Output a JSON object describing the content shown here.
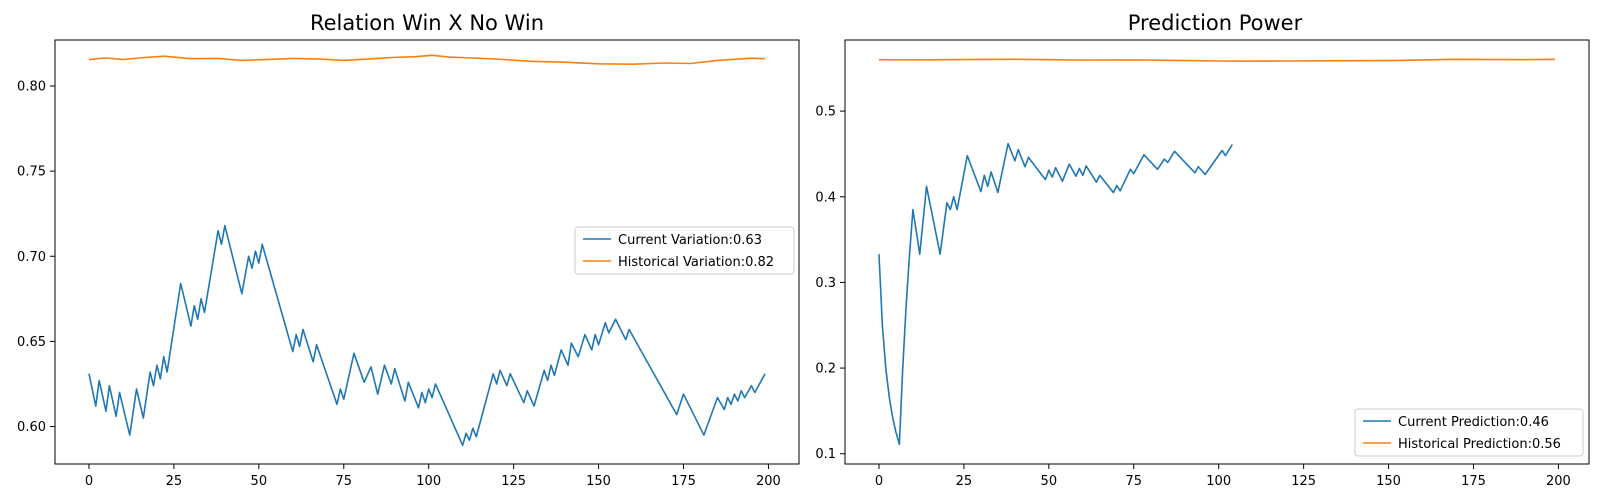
{
  "chart_data": [
    {
      "type": "line",
      "title": "Relation Win X No Win",
      "xlabel": "",
      "ylabel": "",
      "xlim": [
        -10,
        209
      ],
      "ylim": [
        0.578,
        0.827
      ],
      "x_ticks": [
        0,
        25,
        50,
        75,
        100,
        125,
        150,
        175,
        200
      ],
      "y_ticks": [
        0.6,
        0.65,
        0.7,
        0.75,
        0.8
      ],
      "y_tick_labels": [
        "0.60",
        "0.65",
        "0.70",
        "0.75",
        "0.80"
      ],
      "grid": false,
      "legend_position": "center-right",
      "series": [
        {
          "name": "Current Variation:0.63",
          "color": "#1f77b4",
          "points": [
            [
              0,
              0.631
            ],
            [
              2,
              0.612
            ],
            [
              3,
              0.627
            ],
            [
              5,
              0.609
            ],
            [
              6,
              0.624
            ],
            [
              8,
              0.606
            ],
            [
              9,
              0.62
            ],
            [
              12,
              0.595
            ],
            [
              14,
              0.622
            ],
            [
              16,
              0.605
            ],
            [
              18,
              0.632
            ],
            [
              19,
              0.624
            ],
            [
              20,
              0.636
            ],
            [
              21,
              0.628
            ],
            [
              22,
              0.641
            ],
            [
              23,
              0.632
            ],
            [
              27,
              0.684
            ],
            [
              30,
              0.659
            ],
            [
              31,
              0.671
            ],
            [
              32,
              0.663
            ],
            [
              33,
              0.675
            ],
            [
              34,
              0.667
            ],
            [
              38,
              0.715
            ],
            [
              39,
              0.707
            ],
            [
              40,
              0.718
            ],
            [
              45,
              0.678
            ],
            [
              47,
              0.7
            ],
            [
              48,
              0.693
            ],
            [
              49,
              0.703
            ],
            [
              50,
              0.696
            ],
            [
              51,
              0.707
            ],
            [
              60,
              0.644
            ],
            [
              61,
              0.654
            ],
            [
              62,
              0.647
            ],
            [
              63,
              0.657
            ],
            [
              66,
              0.638
            ],
            [
              67,
              0.648
            ],
            [
              73,
              0.613
            ],
            [
              74,
              0.622
            ],
            [
              75,
              0.616
            ],
            [
              78,
              0.643
            ],
            [
              81,
              0.626
            ],
            [
              83,
              0.635
            ],
            [
              85,
              0.619
            ],
            [
              87,
              0.636
            ],
            [
              89,
              0.625
            ],
            [
              90,
              0.634
            ],
            [
              93,
              0.615
            ],
            [
              94,
              0.626
            ],
            [
              97,
              0.611
            ],
            [
              98,
              0.62
            ],
            [
              99,
              0.614
            ],
            [
              100,
              0.622
            ],
            [
              101,
              0.617
            ],
            [
              102,
              0.625
            ],
            [
              110,
              0.589
            ],
            [
              111,
              0.596
            ],
            [
              112,
              0.592
            ],
            [
              113,
              0.599
            ],
            [
              114,
              0.594
            ],
            [
              119,
              0.631
            ],
            [
              120,
              0.625
            ],
            [
              121,
              0.633
            ],
            [
              123,
              0.624
            ],
            [
              124,
              0.631
            ],
            [
              128,
              0.614
            ],
            [
              129,
              0.621
            ],
            [
              131,
              0.612
            ],
            [
              134,
              0.633
            ],
            [
              135,
              0.627
            ],
            [
              136,
              0.636
            ],
            [
              137,
              0.63
            ],
            [
              139,
              0.645
            ],
            [
              141,
              0.636
            ],
            [
              142,
              0.649
            ],
            [
              144,
              0.641
            ],
            [
              146,
              0.654
            ],
            [
              148,
              0.645
            ],
            [
              149,
              0.654
            ],
            [
              150,
              0.648
            ],
            [
              152,
              0.661
            ],
            [
              153,
              0.655
            ],
            [
              155,
              0.663
            ],
            [
              158,
              0.651
            ],
            [
              159,
              0.657
            ],
            [
              173,
              0.607
            ],
            [
              175,
              0.619
            ],
            [
              181,
              0.595
            ],
            [
              185,
              0.617
            ],
            [
              187,
              0.61
            ],
            [
              188,
              0.617
            ],
            [
              189,
              0.613
            ],
            [
              190,
              0.619
            ],
            [
              191,
              0.615
            ],
            [
              192,
              0.621
            ],
            [
              193,
              0.617
            ],
            [
              195,
              0.624
            ],
            [
              196,
              0.62
            ],
            [
              199,
              0.631
            ]
          ]
        },
        {
          "name": "Historical Variation:0.82",
          "color": "#ff7f0e",
          "points": [
            [
              0,
              0.8155
            ],
            [
              5,
              0.8165
            ],
            [
              10,
              0.8155
            ],
            [
              15,
              0.8165
            ],
            [
              22,
              0.8175
            ],
            [
              30,
              0.816
            ],
            [
              38,
              0.8162
            ],
            [
              45,
              0.815
            ],
            [
              52,
              0.8155
            ],
            [
              60,
              0.8162
            ],
            [
              68,
              0.8158
            ],
            [
              75,
              0.815
            ],
            [
              82,
              0.8158
            ],
            [
              90,
              0.8168
            ],
            [
              96,
              0.8172
            ],
            [
              101,
              0.818
            ],
            [
              106,
              0.817
            ],
            [
              112,
              0.8165
            ],
            [
              120,
              0.8158
            ],
            [
              130,
              0.8145
            ],
            [
              140,
              0.814
            ],
            [
              150,
              0.813
            ],
            [
              160,
              0.8128
            ],
            [
              170,
              0.8135
            ],
            [
              177,
              0.8132
            ],
            [
              185,
              0.815
            ],
            [
              195,
              0.8163
            ],
            [
              199,
              0.816
            ]
          ]
        }
      ]
    },
    {
      "type": "line",
      "title": "Prediction Power",
      "xlabel": "",
      "ylabel": "",
      "xlim": [
        -10,
        209
      ],
      "ylim": [
        0.088,
        0.583
      ],
      "x_ticks": [
        0,
        25,
        50,
        75,
        100,
        125,
        150,
        175,
        200
      ],
      "y_ticks": [
        0.1,
        0.2,
        0.3,
        0.4,
        0.5
      ],
      "y_tick_labels": [
        "0.1",
        "0.2",
        "0.3",
        "0.4",
        "0.5"
      ],
      "grid": false,
      "legend_position": "lower right",
      "series": [
        {
          "name": "Current Prediction:0.46",
          "color": "#1f77b4",
          "points": [
            [
              0,
              0.333
            ],
            [
              1,
              0.25
            ],
            [
              2,
              0.2
            ],
            [
              3,
              0.167
            ],
            [
              4,
              0.143
            ],
            [
              5,
              0.125
            ],
            [
              6,
              0.111
            ],
            [
              7,
              0.2
            ],
            [
              8,
              0.273
            ],
            [
              9,
              0.333
            ],
            [
              10,
              0.385
            ],
            [
              12,
              0.333
            ],
            [
              14,
              0.412
            ],
            [
              18,
              0.333
            ],
            [
              20,
              0.393
            ],
            [
              21,
              0.385
            ],
            [
              22,
              0.4
            ],
            [
              23,
              0.385
            ],
            [
              26,
              0.448
            ],
            [
              30,
              0.406
            ],
            [
              31,
              0.425
            ],
            [
              32,
              0.412
            ],
            [
              33,
              0.429
            ],
            [
              35,
              0.405
            ],
            [
              38,
              0.462
            ],
            [
              40,
              0.442
            ],
            [
              41,
              0.455
            ],
            [
              43,
              0.435
            ],
            [
              44,
              0.446
            ],
            [
              49,
              0.42
            ],
            [
              50,
              0.431
            ],
            [
              51,
              0.423
            ],
            [
              52,
              0.434
            ],
            [
              54,
              0.418
            ],
            [
              56,
              0.438
            ],
            [
              58,
              0.424
            ],
            [
              59,
              0.433
            ],
            [
              60,
              0.425
            ],
            [
              61,
              0.436
            ],
            [
              64,
              0.417
            ],
            [
              65,
              0.425
            ],
            [
              69,
              0.405
            ],
            [
              70,
              0.413
            ],
            [
              71,
              0.407
            ],
            [
              74,
              0.432
            ],
            [
              75,
              0.427
            ],
            [
              78,
              0.449
            ],
            [
              82,
              0.432
            ],
            [
              84,
              0.444
            ],
            [
              85,
              0.44
            ],
            [
              87,
              0.453
            ],
            [
              93,
              0.428
            ],
            [
              94,
              0.435
            ],
            [
              96,
              0.426
            ],
            [
              101,
              0.454
            ],
            [
              102,
              0.448
            ],
            [
              104,
              0.461
            ]
          ]
        },
        {
          "name": "Historical Prediction:0.56",
          "color": "#ff7f0e",
          "points": [
            [
              0,
              0.56
            ],
            [
              10,
              0.5598
            ],
            [
              20,
              0.56
            ],
            [
              30,
              0.5603
            ],
            [
              40,
              0.5605
            ],
            [
              50,
              0.56
            ],
            [
              60,
              0.5595
            ],
            [
              70,
              0.5597
            ],
            [
              80,
              0.5595
            ],
            [
              90,
              0.559
            ],
            [
              100,
              0.5585
            ],
            [
              110,
              0.5583
            ],
            [
              120,
              0.5585
            ],
            [
              130,
              0.5587
            ],
            [
              140,
              0.5588
            ],
            [
              150,
              0.559
            ],
            [
              160,
              0.5597
            ],
            [
              170,
              0.5605
            ],
            [
              180,
              0.5602
            ],
            [
              190,
              0.56
            ],
            [
              199,
              0.5605
            ]
          ]
        }
      ]
    }
  ]
}
